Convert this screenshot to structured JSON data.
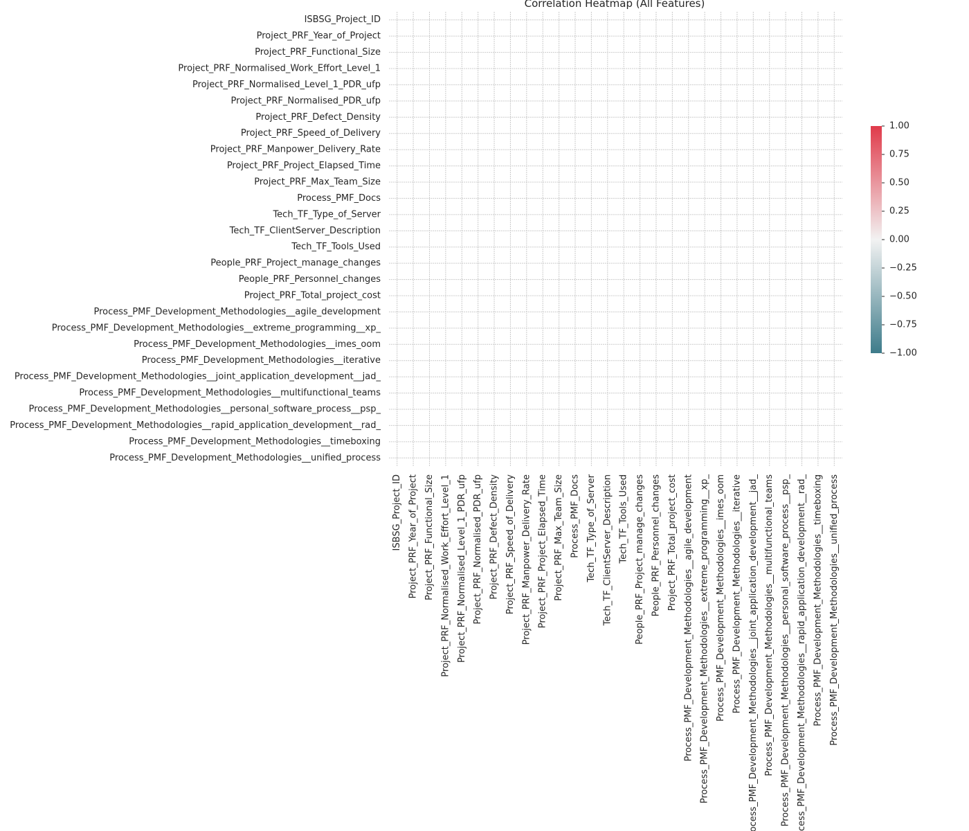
{
  "chart_data": {
    "type": "heatmap",
    "title": "Correlation Heatmap (All Features)",
    "xlabel": "",
    "ylabel": "",
    "grid": true,
    "variables": [
      "ISBSG_Project_ID",
      "Project_PRF_Year_of_Project",
      "Project_PRF_Functional_Size",
      "Project_PRF_Normalised_Work_Effort_Level_1",
      "Project_PRF_Normalised_Level_1_PDR_ufp",
      "Project_PRF_Normalised_PDR_ufp",
      "Project_PRF_Defect_Density",
      "Project_PRF_Speed_of_Delivery",
      "Project_PRF_Manpower_Delivery_Rate",
      "Project_PRF_Project_Elapsed_Time",
      "Project_PRF_Max_Team_Size",
      "Process_PMF_Docs",
      "Tech_TF_Type_of_Server",
      "Tech_TF_ClientServer_Description",
      "Tech_TF_Tools_Used",
      "People_PRF_Project_manage_changes",
      "People_PRF_Personnel_changes",
      "Project_PRF_Total_project_cost",
      "Process_PMF_Development_Methodologies__agile_development",
      "Process_PMF_Development_Methodologies__extreme_programming__xp_",
      "Process_PMF_Development_Methodologies__imes_oom",
      "Process_PMF_Development_Methodologies__iterative",
      "Process_PMF_Development_Methodologies__joint_application_development__jad_",
      "Process_PMF_Development_Methodologies__multifunctional_teams",
      "Process_PMF_Development_Methodologies__personal_software_process__psp_",
      "Process_PMF_Development_Methodologies__rapid_application_development__rad_",
      "Process_PMF_Development_Methodologies__timeboxing",
      "Process_PMF_Development_Methodologies__unified_process"
    ],
    "values": [],
    "colorbar": {
      "range": [
        -1.0,
        1.0
      ],
      "ticks": [
        "1.00",
        "0.75",
        "0.50",
        "0.25",
        "0.00",
        "−0.25",
        "−0.50",
        "−0.75",
        "−1.00"
      ],
      "tick_values": [
        1.0,
        0.75,
        0.5,
        0.25,
        0.0,
        -0.25,
        -0.5,
        -0.75,
        -1.0
      ],
      "color_low": "#3d7b8a",
      "color_mid": "#f2f2f2",
      "color_high": "#e03a4a"
    },
    "legend": "right"
  }
}
